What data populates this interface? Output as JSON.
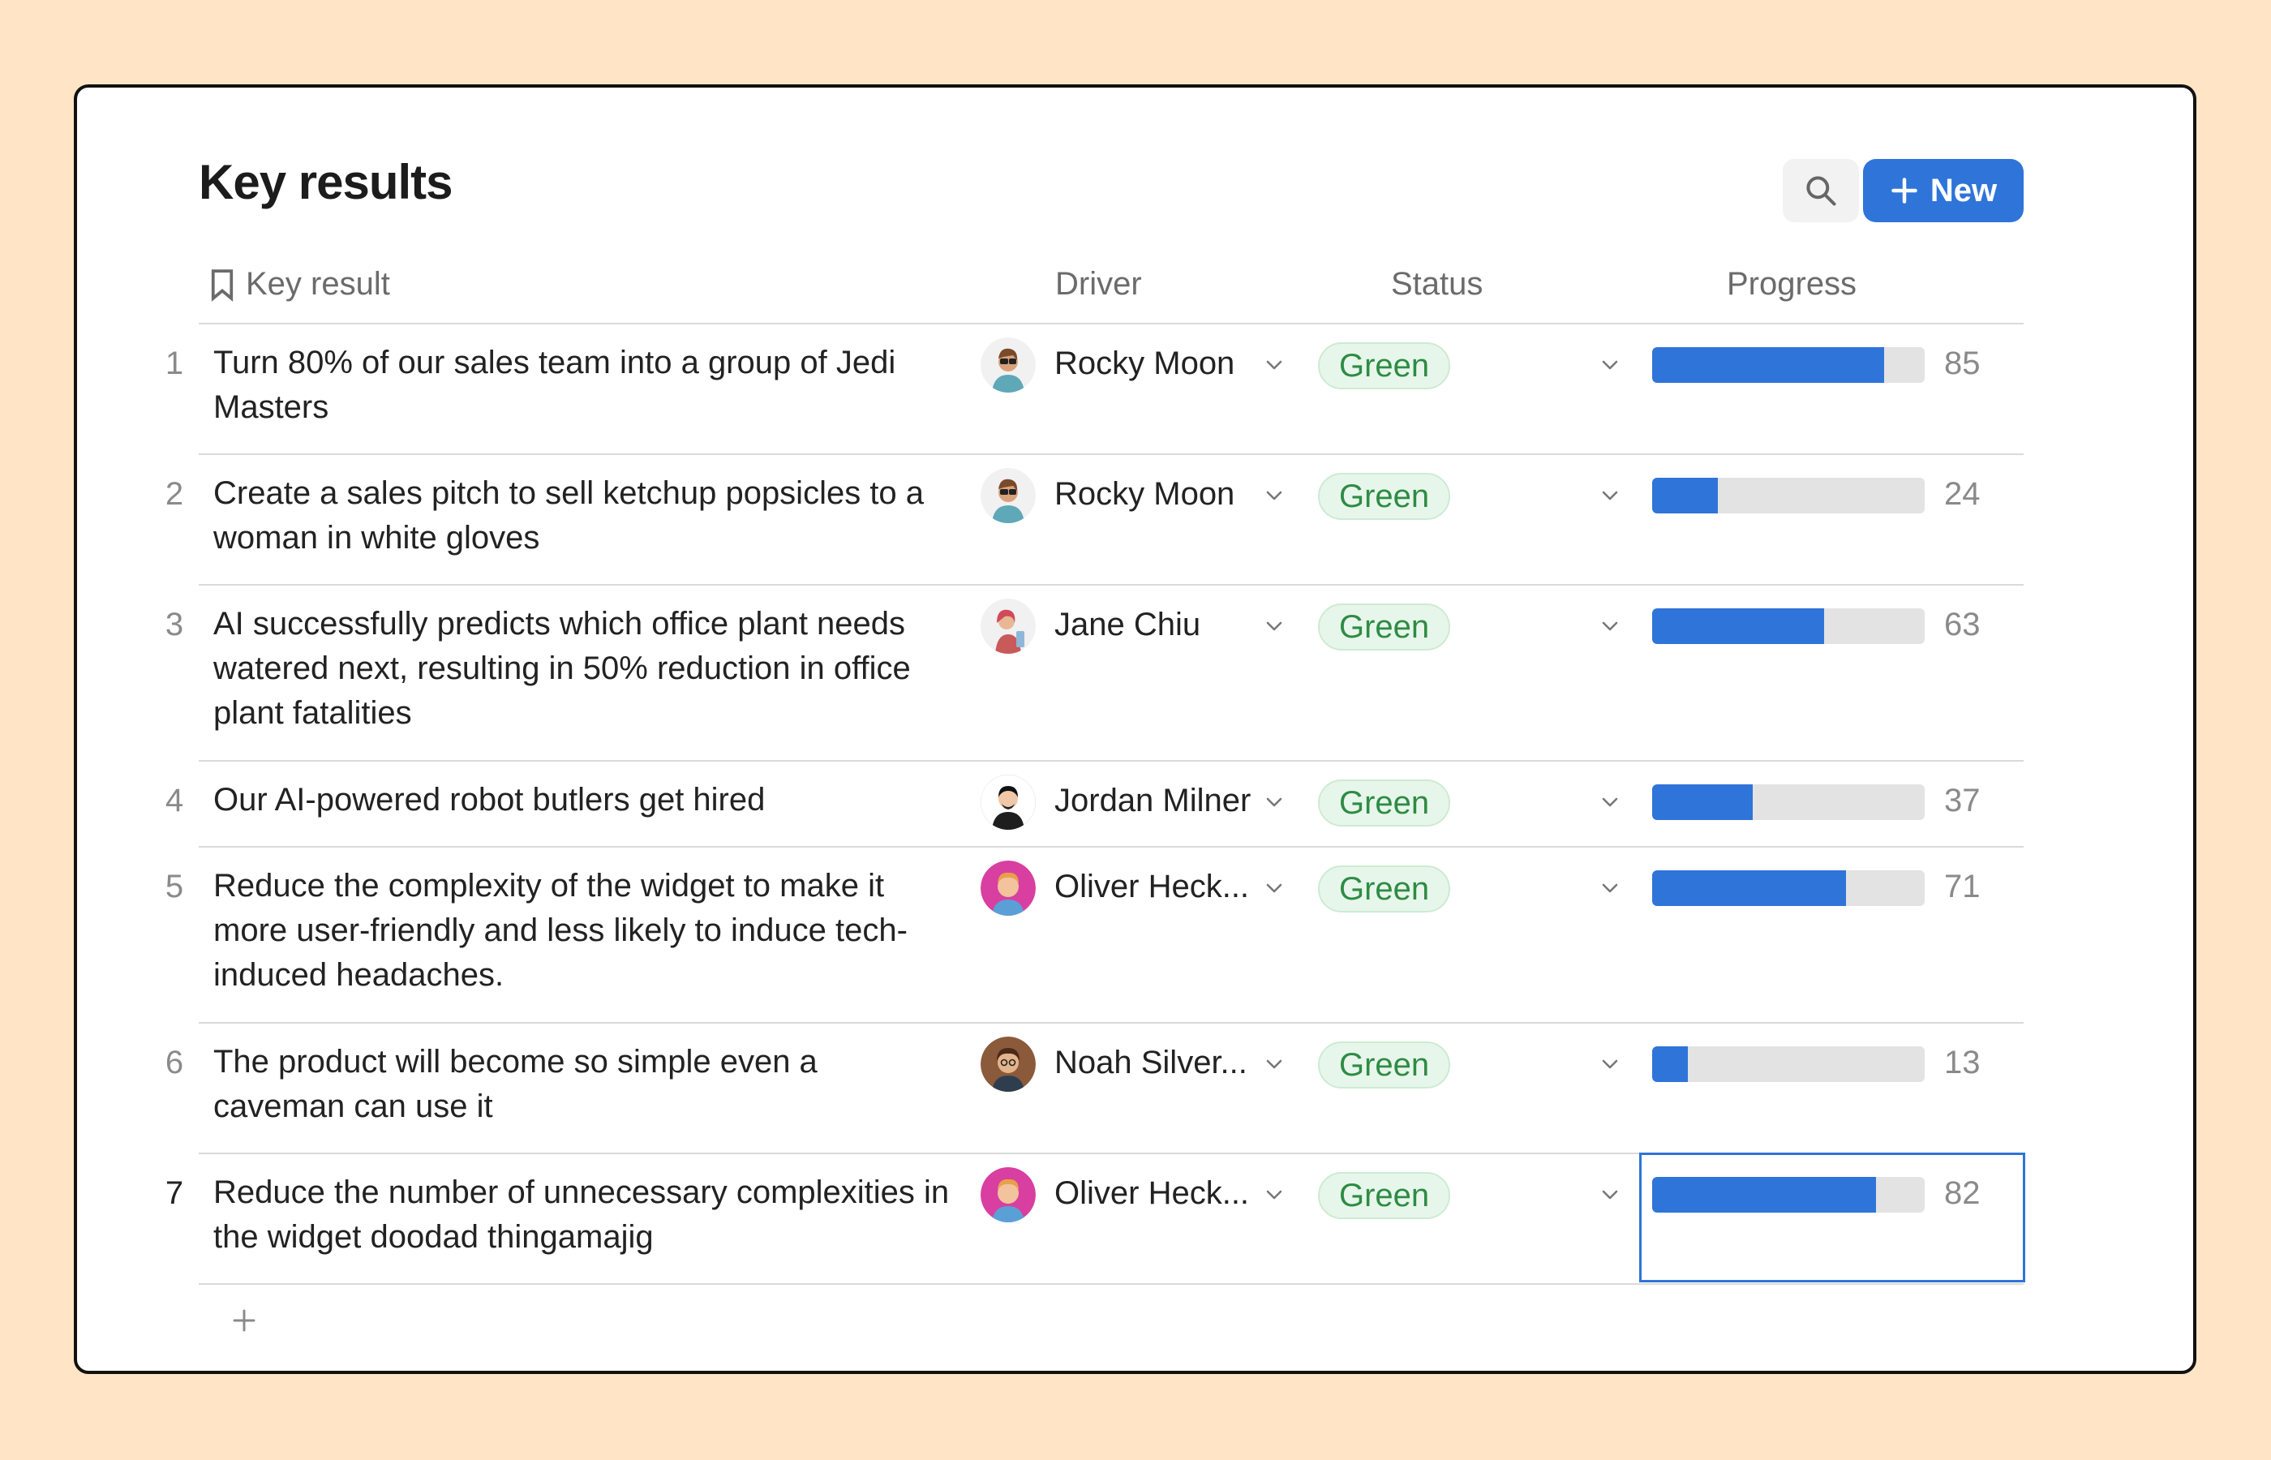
{
  "page": {
    "title": "Key results"
  },
  "toolbar": {
    "new_label": "New",
    "search_icon": "search-icon",
    "plus_icon": "plus-icon"
  },
  "columns": {
    "key_result": "Key result",
    "driver": "Driver",
    "status": "Status",
    "progress": "Progress"
  },
  "colors": {
    "accent": "#2F74D9",
    "status_green": "#2E8B44",
    "status_green_bg": "#E7F6EA",
    "background": "#FFE5C6"
  },
  "rows": [
    {
      "num": "1",
      "text": "Turn 80% of our sales team into a group of Jedi Masters",
      "driver": "Rocky Moon",
      "avatar": "rocky",
      "status": "Green",
      "progress": 85,
      "progress_label": "85"
    },
    {
      "num": "2",
      "text": "Create a sales pitch to sell ketchup popsicles to a woman in white gloves",
      "driver": "Rocky Moon",
      "avatar": "rocky",
      "status": "Green",
      "progress": 24,
      "progress_label": "24"
    },
    {
      "num": "3",
      "text": "AI successfully predicts which office plant needs watered next, resulting in 50% reduction in office plant fatalities",
      "driver": "Jane Chiu",
      "avatar": "jane",
      "status": "Green",
      "progress": 63,
      "progress_label": "63"
    },
    {
      "num": "4",
      "text": "Our AI-powered robot butlers get hired",
      "driver": "Jordan Milner",
      "avatar": "jordan",
      "status": "Green",
      "progress": 37,
      "progress_label": "37"
    },
    {
      "num": "5",
      "text": "Reduce the complexity of the widget to make it more user-friendly and less likely to induce tech-induced headaches.",
      "driver": "Oliver Heck...",
      "avatar": "oliver",
      "status": "Green",
      "progress": 71,
      "progress_label": "71"
    },
    {
      "num": "6",
      "text": "The product will become so simple even a caveman can use it",
      "driver": "Noah Silver...",
      "avatar": "noah",
      "status": "Green",
      "progress": 13,
      "progress_label": "13"
    },
    {
      "num": "7",
      "text": "Reduce the number of unnecessary complexities in the widget doodad thingamajig",
      "driver": "Oliver Heck...",
      "avatar": "oliver",
      "status": "Green",
      "progress": 82,
      "progress_label": "82",
      "selected": true
    }
  ]
}
